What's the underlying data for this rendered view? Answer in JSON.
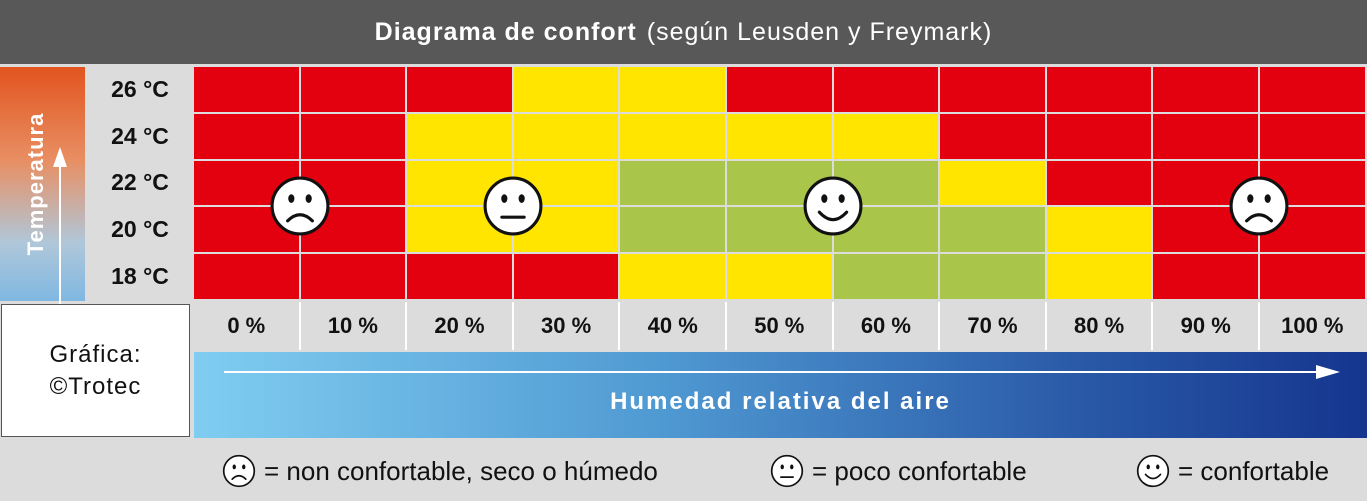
{
  "header": {
    "title_bold": "Diagrama de confort",
    "title_rest": "(según Leusden y Freymark)"
  },
  "credit": {
    "line1": "Gráfica:",
    "line2": "©Trotec"
  },
  "legend": {
    "items": [
      {
        "face": "sad-face",
        "text": "= non confortable, seco o húmedo"
      },
      {
        "face": "neutral-face",
        "text": "= poco confortable"
      },
      {
        "face": "happy-face",
        "text": "= confortable"
      }
    ]
  },
  "colors": {
    "not_comfortable": "#e3000f",
    "little_comfortable": "#ffe500",
    "comfortable": "#a9c64a"
  },
  "chart_data": {
    "type": "heatmap",
    "title": "Diagrama de confort",
    "subtitle": "(según Leusden y Freymark)",
    "ylabel": "Temperatura",
    "xlabel": "Humedad relativa del aire",
    "y_categories": [
      "26 °C",
      "24 °C",
      "22 °C",
      "20 °C",
      "18 °C"
    ],
    "x_categories": [
      "0 %",
      "10 %",
      "20 %",
      "30 %",
      "40 %",
      "50 %",
      "60 %",
      "70 %",
      "80 %",
      "90 %",
      "100 %"
    ],
    "levels": [
      "not_comfortable",
      "little_comfortable",
      "comfortable"
    ],
    "values": [
      [
        0,
        0,
        0,
        1,
        1,
        0,
        0,
        0,
        0,
        0,
        0
      ],
      [
        0,
        0,
        1,
        1,
        1,
        1,
        1,
        0,
        0,
        0,
        0
      ],
      [
        0,
        0,
        1,
        1,
        2,
        2,
        2,
        1,
        0,
        0,
        0
      ],
      [
        0,
        0,
        1,
        1,
        2,
        2,
        2,
        2,
        1,
        0,
        0
      ],
      [
        0,
        0,
        0,
        0,
        1,
        1,
        2,
        2,
        1,
        0,
        0
      ]
    ],
    "annotations": [
      {
        "face": "sad-face",
        "x": "0 %–10 %",
        "y": "22 °C–20 °C"
      },
      {
        "face": "neutral-face",
        "x": "20 %–30 %",
        "y": "22 °C–20 °C"
      },
      {
        "face": "happy-face",
        "x": "50 %–60 %",
        "y": "22 °C–20 °C"
      },
      {
        "face": "sad-face",
        "x": "90 %–100 %",
        "y": "22 °C–20 °C"
      }
    ]
  }
}
